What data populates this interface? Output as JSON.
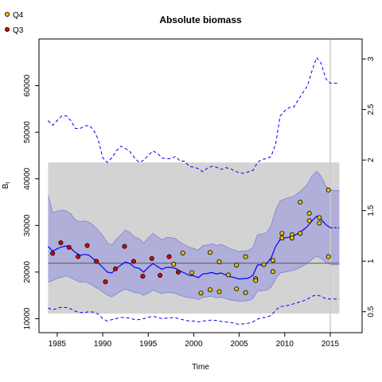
{
  "chart_data": {
    "type": "line",
    "title": "Absolute biomass",
    "xlabel": "Time",
    "ylabel": "B",
    "ylabel_subscript": "t",
    "xlim": [
      1983,
      2018.5
    ],
    "ylim": [
      7000,
      70000
    ],
    "y2lim": [
      0.2929,
      3.1973
    ],
    "x_ticks": [
      1985,
      1990,
      1995,
      2000,
      2005,
      2010,
      2015
    ],
    "y_ticks": [
      10000,
      20000,
      30000,
      40000,
      50000,
      60000
    ],
    "y2_ticks": [
      0.5,
      1,
      1.5,
      2,
      2.5,
      3
    ],
    "legend": {
      "position": "top-left",
      "entries": [
        {
          "label": "Q4",
          "color": "#e8c000"
        },
        {
          "label": "Q3",
          "color": "#dd0000"
        }
      ]
    },
    "colors": {
      "band": "#d3d3d3",
      "ci_fill": "#a3a3dc",
      "median": "#0000ff",
      "reference": "#555555",
      "vline": "#cccccc"
    },
    "reference_band": [
      11100,
      43500
    ],
    "reference_line": 21900,
    "vline_x": 2015,
    "year_start": 1984,
    "median": [
      [
        1984,
        25500
      ],
      [
        1984.5,
        24500
      ],
      [
        1985,
        25000
      ],
      [
        1985.5,
        25400
      ],
      [
        1986,
        25600
      ],
      [
        1986.5,
        25100
      ],
      [
        1987,
        24200
      ],
      [
        1987.5,
        23600
      ],
      [
        1988,
        23800
      ],
      [
        1988.5,
        23600
      ],
      [
        1989,
        22800
      ],
      [
        1989.5,
        22000
      ],
      [
        1990,
        21000
      ],
      [
        1990.5,
        20000
      ],
      [
        1991,
        19800
      ],
      [
        1991.5,
        20800
      ],
      [
        1992,
        21500
      ],
      [
        1992.5,
        22200
      ],
      [
        1993,
        21800
      ],
      [
        1993.5,
        21000
      ],
      [
        1994,
        20800
      ],
      [
        1994.5,
        20000
      ],
      [
        1995,
        21000
      ],
      [
        1995.5,
        21800
      ],
      [
        1996,
        21200
      ],
      [
        1996.5,
        20600
      ],
      [
        1997,
        21000
      ],
      [
        1997.5,
        21000
      ],
      [
        1998,
        20800
      ],
      [
        1998.5,
        20200
      ],
      [
        1999,
        19800
      ],
      [
        1999.5,
        19300
      ],
      [
        2000,
        19200
      ],
      [
        2000.5,
        18800
      ],
      [
        2001,
        19600
      ],
      [
        2001.5,
        19700
      ],
      [
        2002,
        19900
      ],
      [
        2002.5,
        19600
      ],
      [
        2003,
        19800
      ],
      [
        2003.5,
        19400
      ],
      [
        2004,
        19000
      ],
      [
        2004.5,
        18800
      ],
      [
        2005,
        18500
      ],
      [
        2005.5,
        18600
      ],
      [
        2006,
        18700
      ],
      [
        2006.5,
        19300
      ],
      [
        2007,
        21500
      ],
      [
        2007.5,
        21600
      ],
      [
        2008,
        21800
      ],
      [
        2008.5,
        23000
      ],
      [
        2009,
        25500
      ],
      [
        2009.5,
        27000
      ],
      [
        2010,
        27300
      ],
      [
        2010.5,
        27500
      ],
      [
        2011,
        27800
      ],
      [
        2011.5,
        28300
      ],
      [
        2012,
        29000
      ],
      [
        2012.5,
        29800
      ],
      [
        2013,
        31000
      ],
      [
        2013.5,
        32000
      ],
      [
        2014,
        31300
      ],
      [
        2014.5,
        30200
      ],
      [
        2015,
        29500
      ],
      [
        2015.5,
        29500
      ],
      [
        2016,
        29500
      ]
    ],
    "ci_lower": [
      [
        1984,
        17800
      ],
      [
        1984.5,
        18200
      ],
      [
        1985,
        18600
      ],
      [
        1985.5,
        18900
      ],
      [
        1986,
        19200
      ],
      [
        1986.5,
        18800
      ],
      [
        1987,
        18300
      ],
      [
        1987.5,
        17800
      ],
      [
        1988,
        17900
      ],
      [
        1988.5,
        17600
      ],
      [
        1989,
        17000
      ],
      [
        1989.5,
        16400
      ],
      [
        1990,
        15700
      ],
      [
        1990.5,
        15000
      ],
      [
        1991,
        14700
      ],
      [
        1991.5,
        15300
      ],
      [
        1992,
        15900
      ],
      [
        1992.5,
        16300
      ],
      [
        1993,
        16000
      ],
      [
        1993.5,
        15600
      ],
      [
        1994,
        15500
      ],
      [
        1994.5,
        15000
      ],
      [
        1995,
        15500
      ],
      [
        1995.5,
        16100
      ],
      [
        1996,
        15800
      ],
      [
        1996.5,
        15300
      ],
      [
        1997,
        15600
      ],
      [
        1997.5,
        15600
      ],
      [
        1998,
        15400
      ],
      [
        1998.5,
        15000
      ],
      [
        1999,
        14700
      ],
      [
        1999.5,
        14500
      ],
      [
        2000,
        14400
      ],
      [
        2000.5,
        14100
      ],
      [
        2001,
        14600
      ],
      [
        2001.5,
        14700
      ],
      [
        2002,
        14800
      ],
      [
        2002.5,
        14500
      ],
      [
        2003,
        14600
      ],
      [
        2003.5,
        14300
      ],
      [
        2004,
        14000
      ],
      [
        2004.5,
        13900
      ],
      [
        2005,
        13700
      ],
      [
        2005.5,
        13800
      ],
      [
        2006,
        13900
      ],
      [
        2006.5,
        14300
      ],
      [
        2007,
        15900
      ],
      [
        2007.5,
        16000
      ],
      [
        2008,
        16100
      ],
      [
        2008.5,
        16800
      ],
      [
        2009,
        18500
      ],
      [
        2009.5,
        19800
      ],
      [
        2010,
        20000
      ],
      [
        2010.5,
        20200
      ],
      [
        2011,
        20400
      ],
      [
        2011.5,
        20800
      ],
      [
        2012,
        21300
      ],
      [
        2012.5,
        21900
      ],
      [
        2013,
        22700
      ],
      [
        2013.5,
        23400
      ],
      [
        2014,
        22900
      ],
      [
        2014.5,
        22100
      ],
      [
        2015,
        21600
      ],
      [
        2015.5,
        21600
      ],
      [
        2016,
        21600
      ]
    ],
    "ci_upper": [
      [
        1984,
        36500
      ],
      [
        1984.5,
        32800
      ],
      [
        1985,
        33000
      ],
      [
        1985.5,
        33300
      ],
      [
        1986,
        33100
      ],
      [
        1986.5,
        32500
      ],
      [
        1987,
        31200
      ],
      [
        1987.5,
        30800
      ],
      [
        1988,
        31000
      ],
      [
        1988.5,
        30700
      ],
      [
        1989,
        30000
      ],
      [
        1989.5,
        29000
      ],
      [
        1990,
        27800
      ],
      [
        1990.5,
        26300
      ],
      [
        1991,
        25800
      ],
      [
        1991.5,
        27000
      ],
      [
        1992,
        28000
      ],
      [
        1992.5,
        29000
      ],
      [
        1993,
        28500
      ],
      [
        1993.5,
        27500
      ],
      [
        1994,
        27200
      ],
      [
        1994.5,
        26200
      ],
      [
        1995,
        27300
      ],
      [
        1995.5,
        28300
      ],
      [
        1996,
        27600
      ],
      [
        1996.5,
        26900
      ],
      [
        1997,
        27400
      ],
      [
        1997.5,
        27400
      ],
      [
        1998,
        27200
      ],
      [
        1998.5,
        26400
      ],
      [
        1999,
        25900
      ],
      [
        1999.5,
        25300
      ],
      [
        2000,
        25100
      ],
      [
        2000.5,
        24700
      ],
      [
        2001,
        25700
      ],
      [
        2001.5,
        25800
      ],
      [
        2002,
        26100
      ],
      [
        2002.5,
        25700
      ],
      [
        2003,
        26000
      ],
      [
        2003.5,
        25500
      ],
      [
        2004,
        25000
      ],
      [
        2004.5,
        24700
      ],
      [
        2005,
        24400
      ],
      [
        2005.5,
        24500
      ],
      [
        2006,
        24600
      ],
      [
        2006.5,
        25300
      ],
      [
        2007,
        28000
      ],
      [
        2007.5,
        28200
      ],
      [
        2008,
        28400
      ],
      [
        2008.5,
        30000
      ],
      [
        2009,
        33300
      ],
      [
        2009.5,
        35300
      ],
      [
        2010,
        35700
      ],
      [
        2010.5,
        36000
      ],
      [
        2011,
        36300
      ],
      [
        2011.5,
        37000
      ],
      [
        2012,
        37800
      ],
      [
        2012.5,
        38900
      ],
      [
        2013,
        40600
      ],
      [
        2013.5,
        41600
      ],
      [
        2014,
        40600
      ],
      [
        2014.5,
        38500
      ],
      [
        2015,
        37600
      ],
      [
        2015.5,
        37500
      ],
      [
        2016,
        37500
      ]
    ],
    "outer_upper": [
      [
        1984,
        52500
      ],
      [
        1984.5,
        51500
      ],
      [
        1985,
        52500
      ],
      [
        1985.5,
        53500
      ],
      [
        1986,
        53500
      ],
      [
        1986.5,
        52500
      ],
      [
        1987,
        50800
      ],
      [
        1987.5,
        50800
      ],
      [
        1988,
        51300
      ],
      [
        1988.5,
        51500
      ],
      [
        1989,
        50500
      ],
      [
        1989.5,
        48500
      ],
      [
        1990,
        44500
      ],
      [
        1990.5,
        43500
      ],
      [
        1991,
        44500
      ],
      [
        1991.5,
        46000
      ],
      [
        1992,
        47000
      ],
      [
        1992.5,
        46500
      ],
      [
        1993,
        45800
      ],
      [
        1993.5,
        44500
      ],
      [
        1994,
        43500
      ],
      [
        1994.5,
        44000
      ],
      [
        1995,
        45000
      ],
      [
        1995.5,
        46000
      ],
      [
        1996,
        45500
      ],
      [
        1996.5,
        44500
      ],
      [
        1997,
        44300
      ],
      [
        1997.5,
        44300
      ],
      [
        1998,
        44800
      ],
      [
        1998.5,
        43800
      ],
      [
        1999,
        43800
      ],
      [
        1999.5,
        42700
      ],
      [
        2000,
        42500
      ],
      [
        2000.5,
        42200
      ],
      [
        2001,
        41500
      ],
      [
        2001.5,
        42300
      ],
      [
        2002,
        42700
      ],
      [
        2002.5,
        42500
      ],
      [
        2003,
        42000
      ],
      [
        2003.5,
        42400
      ],
      [
        2004,
        42200
      ],
      [
        2004.5,
        41700
      ],
      [
        2005,
        41300
      ],
      [
        2005.5,
        41200
      ],
      [
        2006,
        41500
      ],
      [
        2006.5,
        41800
      ],
      [
        2007,
        43500
      ],
      [
        2007.5,
        44200
      ],
      [
        2008,
        44300
      ],
      [
        2008.5,
        44800
      ],
      [
        2009,
        47500
      ],
      [
        2009.5,
        53500
      ],
      [
        2010,
        54600
      ],
      [
        2010.5,
        55300
      ],
      [
        2011,
        55400
      ],
      [
        2011.5,
        57000
      ],
      [
        2012,
        58500
      ],
      [
        2012.5,
        60000
      ],
      [
        2013,
        63200
      ],
      [
        2013.5,
        66000
      ],
      [
        2014,
        64800
      ],
      [
        2014.5,
        61500
      ],
      [
        2015,
        60500
      ],
      [
        2015.5,
        60500
      ],
      [
        2016,
        60500
      ]
    ],
    "outer_lower": [
      [
        1984,
        12300
      ],
      [
        1984.5,
        11900
      ],
      [
        1985,
        12200
      ],
      [
        1985.5,
        12500
      ],
      [
        1986,
        12400
      ],
      [
        1986.5,
        12100
      ],
      [
        1987,
        11600
      ],
      [
        1987.5,
        11300
      ],
      [
        1988,
        11300
      ],
      [
        1988.5,
        11500
      ],
      [
        1989,
        11400
      ],
      [
        1989.5,
        11000
      ],
      [
        1990,
        10000
      ],
      [
        1990.5,
        9500
      ],
      [
        1991,
        9800
      ],
      [
        1991.5,
        10000
      ],
      [
        1992,
        10300
      ],
      [
        1992.5,
        10200
      ],
      [
        1993,
        10100
      ],
      [
        1993.5,
        9800
      ],
      [
        1994,
        9800
      ],
      [
        1994.5,
        10000
      ],
      [
        1995,
        10300
      ],
      [
        1995.5,
        10500
      ],
      [
        1996,
        10300
      ],
      [
        1996.5,
        10000
      ],
      [
        1997,
        10100
      ],
      [
        1997.5,
        10200
      ],
      [
        1998,
        10200
      ],
      [
        1998.5,
        9900
      ],
      [
        1999,
        9700
      ],
      [
        1999.5,
        9500
      ],
      [
        2000,
        9500
      ],
      [
        2000.5,
        9300
      ],
      [
        2001,
        9500
      ],
      [
        2001.5,
        9600
      ],
      [
        2002,
        9700
      ],
      [
        2002.5,
        9600
      ],
      [
        2003,
        9400
      ],
      [
        2003.5,
        9300
      ],
      [
        2004,
        9200
      ],
      [
        2004.5,
        9000
      ],
      [
        2005,
        8800
      ],
      [
        2005.5,
        8900
      ],
      [
        2006,
        9000
      ],
      [
        2006.5,
        9300
      ],
      [
        2007,
        9900
      ],
      [
        2007.5,
        10200
      ],
      [
        2008,
        10300
      ],
      [
        2008.5,
        10700
      ],
      [
        2009,
        11800
      ],
      [
        2009.5,
        12600
      ],
      [
        2010,
        12700
      ],
      [
        2010.5,
        12900
      ],
      [
        2011,
        13200
      ],
      [
        2011.5,
        13500
      ],
      [
        2012,
        13800
      ],
      [
        2012.5,
        14200
      ],
      [
        2013,
        14800
      ],
      [
        2013.5,
        15100
      ],
      [
        2014,
        14800
      ],
      [
        2014.5,
        14300
      ],
      [
        2015,
        14200
      ],
      [
        2015.5,
        14200
      ],
      [
        2016,
        14200
      ]
    ],
    "series": [
      {
        "name": "Q3",
        "marker_color": "#dd0000",
        "points": [
          [
            1984.5,
            24000
          ],
          [
            1985.4,
            26300
          ],
          [
            1986.3,
            25300
          ],
          [
            1987.3,
            23300
          ],
          [
            1988.3,
            25700
          ],
          [
            1989.3,
            22300
          ],
          [
            1990.3,
            17900
          ],
          [
            1991.4,
            20700
          ],
          [
            1992.4,
            25500
          ],
          [
            1993.4,
            22300
          ],
          [
            1994.4,
            19100
          ],
          [
            1995.4,
            22900
          ],
          [
            1996.3,
            19300
          ],
          [
            1997.3,
            23300
          ],
          [
            1998.3,
            20000
          ]
        ]
      },
      {
        "name": "Q4",
        "marker_color": "#e8c000",
        "points": [
          [
            1997.8,
            21700
          ],
          [
            1998.8,
            24100
          ],
          [
            1999.8,
            19900
          ],
          [
            2000.8,
            15500
          ],
          [
            2001.8,
            24200
          ],
          [
            2001.8,
            16200
          ],
          [
            2002.8,
            15800
          ],
          [
            2002.8,
            22200
          ],
          [
            2003.8,
            19400
          ],
          [
            2004.7,
            21500
          ],
          [
            2004.7,
            16400
          ],
          [
            2005.7,
            23300
          ],
          [
            2005.7,
            15600
          ],
          [
            2006.8,
            18600
          ],
          [
            2006.8,
            18200
          ],
          [
            2007.7,
            21600
          ],
          [
            2008.7,
            22500
          ],
          [
            2008.7,
            20100
          ],
          [
            2009.7,
            28300
          ],
          [
            2009.7,
            27300
          ],
          [
            2010.8,
            28000
          ],
          [
            2010.8,
            27300
          ],
          [
            2011.7,
            35000
          ],
          [
            2011.7,
            28300
          ],
          [
            2012.7,
            32600
          ],
          [
            2012.7,
            31000
          ],
          [
            2013.8,
            31700
          ],
          [
            2013.8,
            30500
          ],
          [
            2014.8,
            37600
          ],
          [
            2014.8,
            23300
          ]
        ]
      }
    ]
  }
}
